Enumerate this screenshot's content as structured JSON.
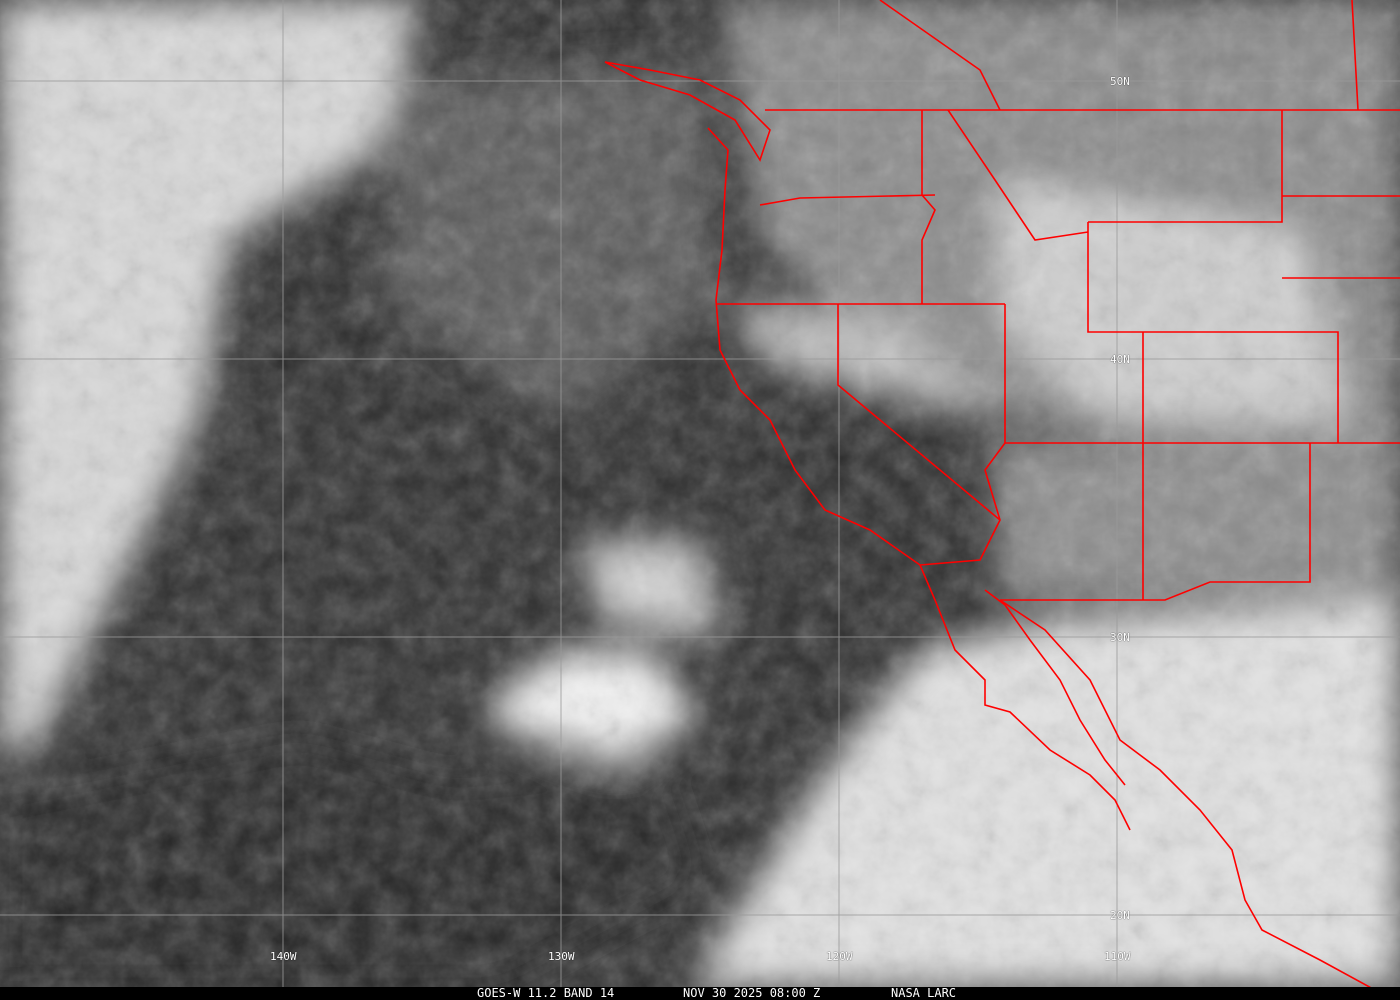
{
  "caption": {
    "satellite_product": "GOES-W 11.2 BAND 14",
    "datetime": "NOV 30 2025 08:00 Z",
    "source": "NASA LARC"
  },
  "grid": {
    "longitude_labels": [
      "140W",
      "130W",
      "120W",
      "110W"
    ],
    "latitude_labels": [
      "50N",
      "40N",
      "30N",
      "20N"
    ]
  },
  "colors": {
    "boundaries": "#ff0000",
    "grid": "#9a9a9a",
    "caption_bg": "#000000"
  }
}
